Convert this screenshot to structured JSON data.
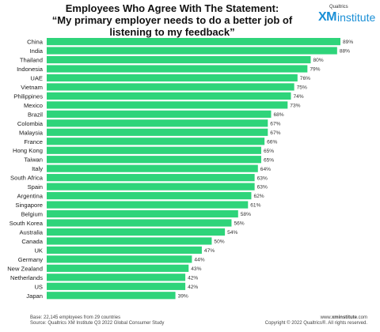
{
  "title_line1": "Employees Who Agree With The Statement:",
  "title_line2": "“My primary employer needs to do a better job of",
  "title_line3": "listening to my feedback”",
  "logo": {
    "brand": "Qualtrics",
    "xm": "XM",
    "institute": "institute"
  },
  "footnote": {
    "base": "Base: 22,145 employees from 29 countries",
    "source": "Source: Qualtrics XM Institute Q3 2022 Global Consumer Study",
    "website_prefix": "www.",
    "website_bold": "xminstitute",
    "website_suffix": ".com",
    "copyright": "Copyright © 2022 Qualtrics®. All rights reserved."
  },
  "colors": {
    "bar": "#2ed47a",
    "label": "#1a1a1a",
    "value": "#333333"
  },
  "chart_data": {
    "type": "bar",
    "orientation": "horizontal",
    "title": "Employees Who Agree With The Statement: “My primary employer needs to do a better job of listening to my feedback”",
    "value_suffix": "%",
    "categories": [
      "China",
      "India",
      "Thailand",
      "Indonesia",
      "UAE",
      "Vietnam",
      "Philippines",
      "Mexico",
      "Brazil",
      "Colombia",
      "Malaysia",
      "France",
      "Hong Kong",
      "Taiwan",
      "Italy",
      "South Africa",
      "Spain",
      "Argentina",
      "Singapore",
      "Belgium",
      "South Korea",
      "Australia",
      "Canada",
      "UK",
      "Germany",
      "New Zealand",
      "Netherlands",
      "US",
      "Japan"
    ],
    "values": [
      89,
      88,
      80,
      79,
      76,
      75,
      74,
      73,
      68,
      67,
      67,
      66,
      65,
      65,
      64,
      63,
      63,
      62,
      61,
      58,
      56,
      54,
      50,
      47,
      44,
      43,
      42,
      42,
      39
    ],
    "xlim": [
      0,
      100
    ],
    "grid": false,
    "legend": "none"
  }
}
